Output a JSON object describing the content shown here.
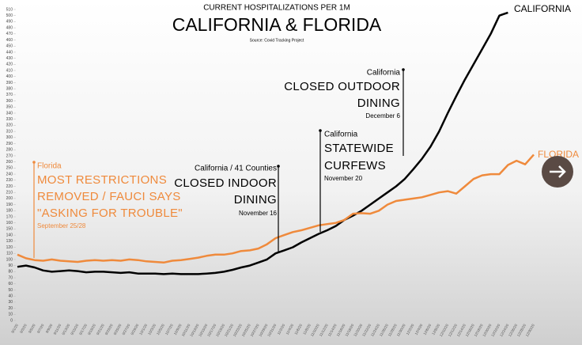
{
  "chart_data": {
    "type": "line",
    "title": "CALIFORNIA & FLORIDA",
    "subtitle": "CURRENT HOSPITALIZATIONS PER 1M",
    "source": "Source: Covid Tracking Project",
    "categories": [
      "9/1/20",
      "9/3/20",
      "9/5/20",
      "9/7/20",
      "9/9/20",
      "9/11/20",
      "9/13/20",
      "9/15/20",
      "9/17/20",
      "9/19/20",
      "9/21/20",
      "9/23/20",
      "9/25/20",
      "9/27/20",
      "9/29/20",
      "10/1/20",
      "10/3/20",
      "10/5/20",
      "10/7/20",
      "10/9/20",
      "10/11/20",
      "10/13/20",
      "10/15/20",
      "10/17/20",
      "10/19/20",
      "10/21/20",
      "10/23/20",
      "10/25/20",
      "10/27/20",
      "10/29/20",
      "10/31/20",
      "11/2/20",
      "11/4/20",
      "11/6/20",
      "11/8/20",
      "11/10/20",
      "11/12/20",
      "11/14/20",
      "11/16/20",
      "11/18/20",
      "11/20/20",
      "11/22/20",
      "11/24/20",
      "11/26/20",
      "11/28/20",
      "11/30/20",
      "12/2/20",
      "12/4/20",
      "12/6/20",
      "12/8/20",
      "12/10/20",
      "12/12/20",
      "12/14/20",
      "12/16/20",
      "12/18/20",
      "12/20/20",
      "12/22/20",
      "12/24/20",
      "12/26/20",
      "12/28/20",
      "12/30/20"
    ],
    "series": [
      {
        "name": "CALIFORNIA",
        "color": "#000000",
        "values": [
          88,
          90,
          87,
          82,
          80,
          81,
          82,
          81,
          79,
          80,
          80,
          79,
          78,
          79,
          77,
          77,
          77,
          76,
          77,
          76,
          76,
          76,
          77,
          78,
          80,
          83,
          87,
          90,
          95,
          100,
          110,
          115,
          120,
          128,
          135,
          142,
          148,
          155,
          165,
          172,
          180,
          190,
          200,
          210,
          220,
          232,
          248,
          265,
          285,
          310,
          340,
          368,
          395,
          420,
          445,
          470,
          500,
          505,
          null,
          null,
          null
        ]
      },
      {
        "name": "FLORIDA",
        "color": "#ef8a3c",
        "values": [
          108,
          102,
          99,
          98,
          100,
          98,
          97,
          96,
          98,
          99,
          98,
          99,
          98,
          100,
          99,
          97,
          96,
          95,
          98,
          99,
          101,
          103,
          106,
          108,
          108,
          110,
          114,
          115,
          118,
          125,
          135,
          140,
          145,
          148,
          152,
          156,
          158,
          160,
          165,
          175,
          176,
          175,
          180,
          190,
          196,
          198,
          200,
          202,
          206,
          210,
          212,
          208,
          220,
          232,
          238,
          240,
          240,
          255,
          262,
          256,
          272
        ]
      }
    ],
    "ylim": [
      0,
      510
    ],
    "yticks": [
      0,
      10,
      20,
      30,
      40,
      50,
      60,
      70,
      80,
      90,
      100,
      110,
      120,
      130,
      140,
      150,
      160,
      170,
      180,
      190,
      200,
      210,
      220,
      230,
      240,
      250,
      260,
      270,
      280,
      290,
      300,
      310,
      320,
      330,
      340,
      350,
      360,
      370,
      380,
      390,
      400,
      410,
      420,
      430,
      440,
      450,
      460,
      470,
      480,
      490,
      500,
      510
    ],
    "grid": false,
    "annotations": [
      {
        "label": "Florida",
        "text": [
          "MOST RESTRICTIONS",
          "REMOVED / FAUCI SAYS",
          "\"ASKING FOR TROUBLE\""
        ],
        "date": "September 25/28"
      },
      {
        "label": "California / 41 Counties",
        "text": [
          "CLOSED INDOOR",
          "DINING"
        ],
        "date": "November 16"
      },
      {
        "label": "California",
        "text": [
          "STATEWIDE",
          "CURFEWS"
        ],
        "date": "November 20"
      },
      {
        "label": "California",
        "text": [
          "CLOSED OUTDOOR",
          "DINING"
        ],
        "date": "December 6"
      }
    ]
  }
}
